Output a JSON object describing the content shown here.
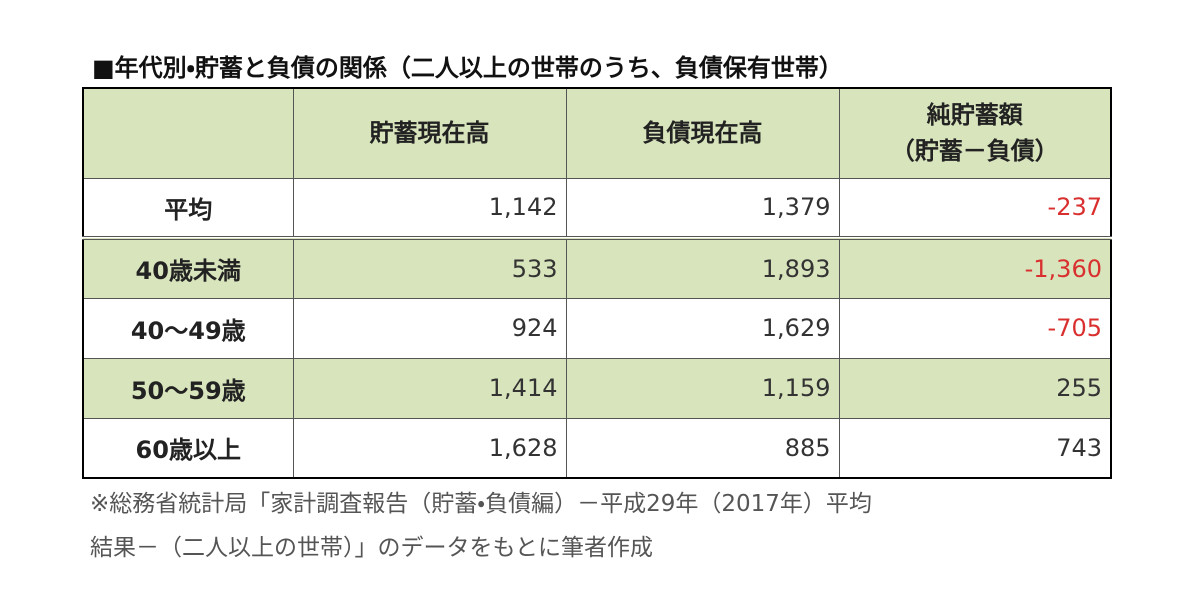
{
  "title": "■年代別・貯蓄と負債の関係（二人以上の世帯のうち、負債保有世帯）",
  "table": {
    "columns": [
      [
        "貯蓄現在高"
      ],
      [
        "負債現在高"
      ],
      [
        "純貯蓄額",
        "（貯蓄－負債）"
      ]
    ],
    "rows": [
      {
        "label": "平均",
        "cells": [
          "1,142",
          "1,379",
          "-237"
        ]
      },
      {
        "label": "40歳未満",
        "cells": [
          "533",
          "1,893",
          "-1,360"
        ]
      },
      {
        "label": "40～49歳",
        "cells": [
          "924",
          "1,629",
          "-705"
        ]
      },
      {
        "label": "50～59歳",
        "cells": [
          "1,414",
          "1,159",
          "255"
        ]
      },
      {
        "label": "60歳以上",
        "cells": [
          "1,628",
          "885",
          "743"
        ]
      }
    ]
  },
  "footnote": [
    "※総務省統計局「家計調査報告（貯蓄・負債編）－平成29年（2017年）平均",
    "結果－（二人以上の世帯）」のデータをもとに筆者作成"
  ]
}
